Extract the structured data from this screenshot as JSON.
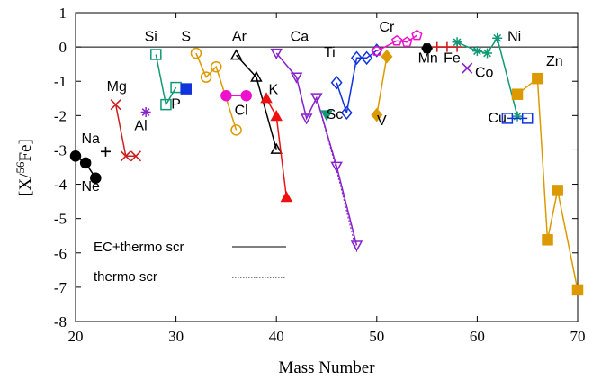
{
  "chart_data": {
    "type": "line",
    "title": "",
    "xlabel": "Mass Number",
    "ylabel_prefix": "[X/",
    "ylabel_sup": "56",
    "ylabel_suffix": "Fe]",
    "xlim": [
      20,
      70
    ],
    "ylim": [
      -8,
      1
    ],
    "xticks": [
      20,
      30,
      40,
      50,
      60,
      70
    ],
    "yticks": [
      -8,
      -7,
      -6,
      -5,
      -4,
      -3,
      -2,
      -1,
      0,
      1
    ],
    "reference_line_y": 0,
    "legend": [
      {
        "label": "EC+thermo scr",
        "style": "solid"
      },
      {
        "label": "thermo scr",
        "style": "dotted"
      }
    ],
    "series": [
      {
        "element": "Na",
        "color": "#000000",
        "marker": "circle-filled",
        "points": [
          [
            20,
            -3.18
          ],
          [
            21,
            -3.38
          ],
          [
            22,
            -3.82
          ]
        ],
        "labels": [
          {
            "text": "Na",
            "x": 21.5,
            "y": -2.8
          },
          {
            "text": "Ne",
            "x": 21.5,
            "y": -4.2
          }
        ]
      },
      {
        "element": "Mg",
        "color": "#cc2020",
        "marker": "x",
        "points": [
          [
            24,
            -1.68
          ],
          [
            25,
            -3.18
          ],
          [
            26,
            -3.18
          ]
        ],
        "labels": [
          {
            "text": "Mg",
            "x": 24.1,
            "y": -1.28
          }
        ]
      },
      {
        "element": "Al",
        "color": "#8822cc",
        "marker": "asterisk",
        "points": [
          [
            27,
            -1.9
          ]
        ],
        "labels": [
          {
            "text": "Al",
            "x": 26.5,
            "y": -2.42
          }
        ]
      },
      {
        "element": "Si",
        "color": "#119977",
        "marker": "square-open",
        "points": [
          [
            28,
            -0.22
          ],
          [
            29,
            -1.68
          ],
          [
            30,
            -1.18
          ]
        ],
        "labels": [
          {
            "text": "Si",
            "x": 27.5,
            "y": 0.18
          },
          {
            "text": "P",
            "x": 30.0,
            "y": -1.8
          }
        ]
      },
      {
        "element": "P",
        "color": "#1133dd",
        "marker": "square-filled",
        "points": [
          [
            31,
            -1.22
          ]
        ],
        "labels": []
      },
      {
        "element": "S",
        "color": "#dd9900",
        "marker": "circle-open",
        "points": [
          [
            32,
            -0.18
          ],
          [
            33,
            -0.88
          ],
          [
            34,
            -0.58
          ],
          [
            36,
            -2.42
          ]
        ],
        "labels": [
          {
            "text": "S",
            "x": 31.0,
            "y": 0.18
          }
        ]
      },
      {
        "element": "Cl",
        "color": "#ee11cc",
        "marker": "circle-filled",
        "points": [
          [
            35,
            -1.42
          ],
          [
            37,
            -1.42
          ]
        ],
        "labels": [
          {
            "text": "Cl",
            "x": 36.5,
            "y": -1.98
          }
        ]
      },
      {
        "element": "Ar",
        "color": "#000000",
        "marker": "triangle-open",
        "points": [
          [
            36,
            -0.24
          ],
          [
            38,
            -0.88
          ],
          [
            40,
            -2.98
          ]
        ],
        "labels": [
          {
            "text": "Ar",
            "x": 36.3,
            "y": 0.18
          },
          {
            "text": "K",
            "x": 39.7,
            "y": -1.38
          }
        ]
      },
      {
        "element": "K",
        "color": "#ee1111",
        "marker": "triangle-filled",
        "points": [
          [
            39,
            -1.5
          ],
          [
            40,
            -2.02
          ],
          [
            41,
            -4.38
          ]
        ],
        "labels": []
      },
      {
        "element": "Ca",
        "color": "#8822cc",
        "marker": "triangle-down-open",
        "points": [
          [
            40,
            -0.18
          ],
          [
            42,
            -0.88
          ],
          [
            43,
            -2.08
          ],
          [
            44,
            -1.48
          ],
          [
            46,
            -3.48
          ],
          [
            48,
            -5.78
          ]
        ],
        "points_thermo": [
          [
            40,
            -0.18
          ],
          [
            42,
            -0.88
          ],
          [
            43,
            -2.08
          ],
          [
            44,
            -1.48
          ],
          [
            46,
            -3.58
          ],
          [
            48,
            -5.98
          ]
        ],
        "labels": [
          {
            "text": "Ca",
            "x": 42.3,
            "y": 0.18
          }
        ]
      },
      {
        "element": "Sc",
        "color": "#119977",
        "marker": "triangle-down-filled",
        "points": [
          [
            45,
            -1.98
          ]
        ],
        "labels": [
          {
            "text": "Sc",
            "x": 45.8,
            "y": -2.1
          }
        ]
      },
      {
        "element": "Ti",
        "color": "#1133dd",
        "marker": "diamond-open",
        "points": [
          [
            46,
            -1.04
          ],
          [
            47,
            -1.92
          ],
          [
            48,
            -0.32
          ],
          [
            49,
            -0.32
          ],
          [
            50,
            -0.1
          ]
        ],
        "labels": [
          {
            "text": "Ti",
            "x": 45.3,
            "y": -0.28
          }
        ]
      },
      {
        "element": "V",
        "color": "#dd9900",
        "marker": "diamond-filled",
        "points": [
          [
            50,
            -1.98
          ],
          [
            51,
            -0.28
          ]
        ],
        "labels": [
          {
            "text": "V",
            "x": 50.5,
            "y": -2.28
          }
        ]
      },
      {
        "element": "Cr",
        "color": "#ee11cc",
        "marker": "pentagon-open",
        "points": [
          [
            50,
            -0.12
          ],
          [
            52,
            0.18
          ],
          [
            53,
            0.14
          ],
          [
            54,
            0.34
          ]
        ],
        "labels": [
          {
            "text": "Cr",
            "x": 51.0,
            "y": 0.45
          }
        ]
      },
      {
        "element": "Mn",
        "color": "#000000",
        "marker": "hexagon-filled",
        "points": [
          [
            55,
            -0.04
          ]
        ],
        "labels": [
          {
            "text": "Mn",
            "x": 55.1,
            "y": -0.45
          }
        ]
      },
      {
        "element": "Fe",
        "color": "#cc2020",
        "marker": "plus",
        "points": [
          [
            56,
            0.0
          ],
          [
            57,
            0.0
          ],
          [
            58,
            0.0
          ]
        ],
        "labels": [
          {
            "text": "Fe",
            "x": 57.5,
            "y": -0.45
          }
        ]
      },
      {
        "element": "Co",
        "color": "#8822cc",
        "marker": "x",
        "points": [
          [
            59,
            -0.62
          ]
        ],
        "labels": [
          {
            "text": "Co",
            "x": 60.7,
            "y": -0.88
          }
        ]
      },
      {
        "element": "Ni",
        "color": "#119977",
        "marker": "asterisk",
        "points": [
          [
            58,
            0.14
          ],
          [
            60,
            -0.12
          ],
          [
            61,
            -0.18
          ],
          [
            62,
            0.26
          ],
          [
            64,
            -2.02
          ]
        ],
        "labels": [
          {
            "text": "Ni",
            "x": 63.7,
            "y": 0.18
          }
        ]
      },
      {
        "element": "Cu",
        "color": "#1133dd",
        "marker": "square-open",
        "points": [
          [
            63,
            -2.08
          ],
          [
            65,
            -2.08
          ]
        ],
        "labels": [
          {
            "text": "Cu",
            "x": 62.0,
            "y": -2.2
          }
        ]
      },
      {
        "element": "Zn",
        "color": "#dd9900",
        "marker": "square-filled",
        "points": [
          [
            64,
            -1.38
          ],
          [
            66,
            -0.92
          ],
          [
            67,
            -5.62
          ],
          [
            68,
            -4.18
          ],
          [
            70,
            -7.08
          ]
        ],
        "labels": [
          {
            "text": "Zn",
            "x": 67.7,
            "y": -0.55
          }
        ]
      }
    ],
    "extra_markers": [
      {
        "color": "#000000",
        "marker": "plus",
        "x": 23,
        "y": -3.05
      }
    ]
  }
}
